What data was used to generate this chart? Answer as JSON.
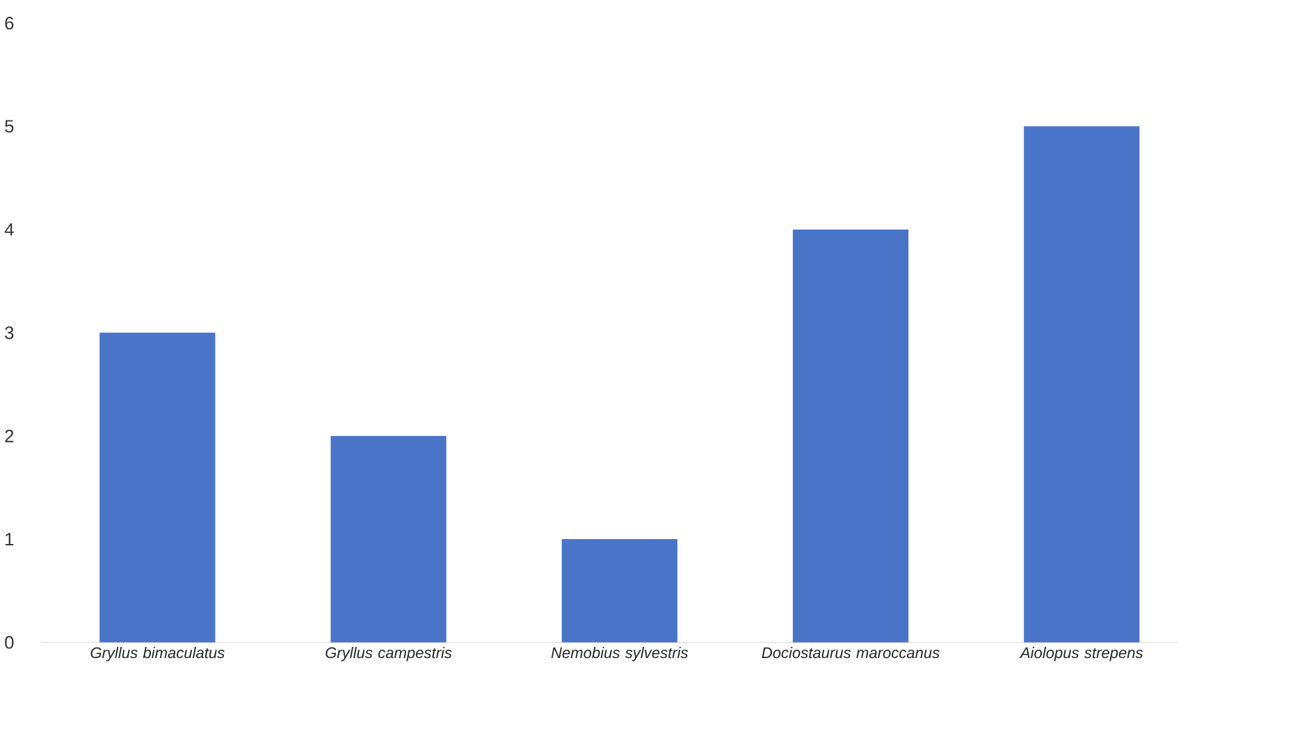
{
  "chart_data": {
    "type": "bar",
    "categories": [
      "Gryllus bimaculatus",
      "Gryllus campestris",
      "Nemobius sylvestris",
      "Dociostaurus maroccanus",
      "Aiolopus strepens"
    ],
    "values": [
      3,
      2,
      1,
      4,
      5
    ],
    "color": "#4a74c8",
    "ylim": [
      0,
      6
    ],
    "yticks": [
      0,
      1,
      2,
      3,
      4,
      5,
      6
    ]
  }
}
